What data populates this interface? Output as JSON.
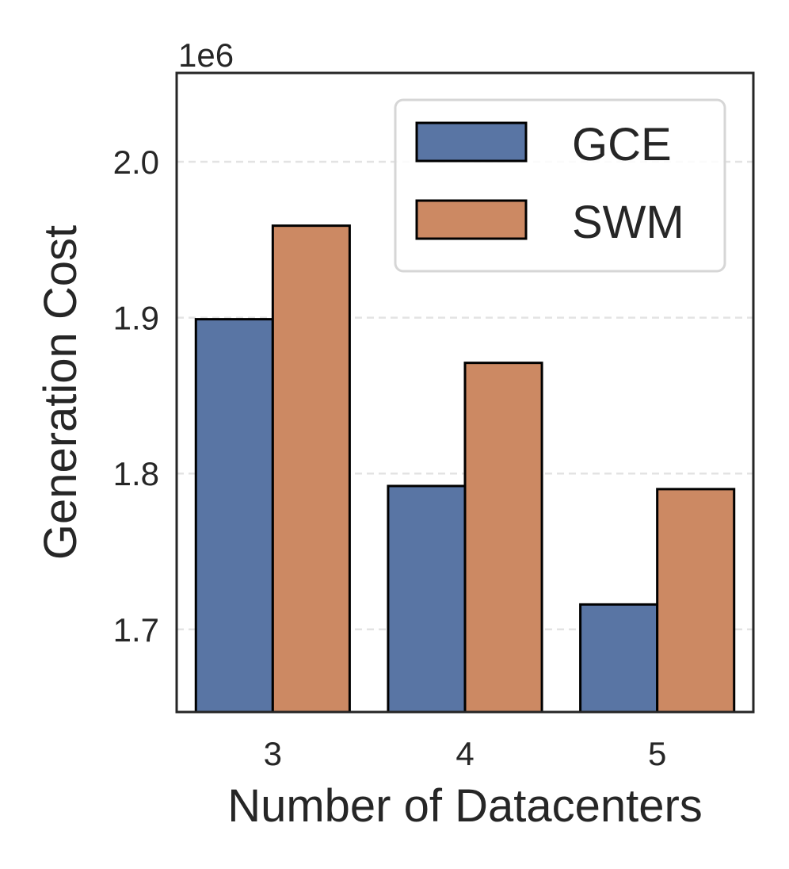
{
  "chart_data": {
    "type": "bar",
    "title": "",
    "xlabel": "Number of Datacenters",
    "ylabel": "Generation Cost",
    "y_offset_label": "1e6",
    "categories": [
      "3",
      "4",
      "5"
    ],
    "series": [
      {
        "name": "GCE",
        "color": "#5975a4",
        "values": [
          1.899,
          1.792,
          1.716
        ]
      },
      {
        "name": "SWM",
        "color": "#cc8963",
        "values": [
          1.959,
          1.871,
          1.79
        ]
      }
    ],
    "ylim": [
      1.647,
      2.057
    ],
    "yticks": [
      1.7,
      1.8,
      1.9,
      2.0
    ],
    "ytick_labels": [
      "1.7",
      "1.8",
      "1.9",
      "2.0"
    ],
    "grid": true,
    "legend_position": "top-right"
  }
}
